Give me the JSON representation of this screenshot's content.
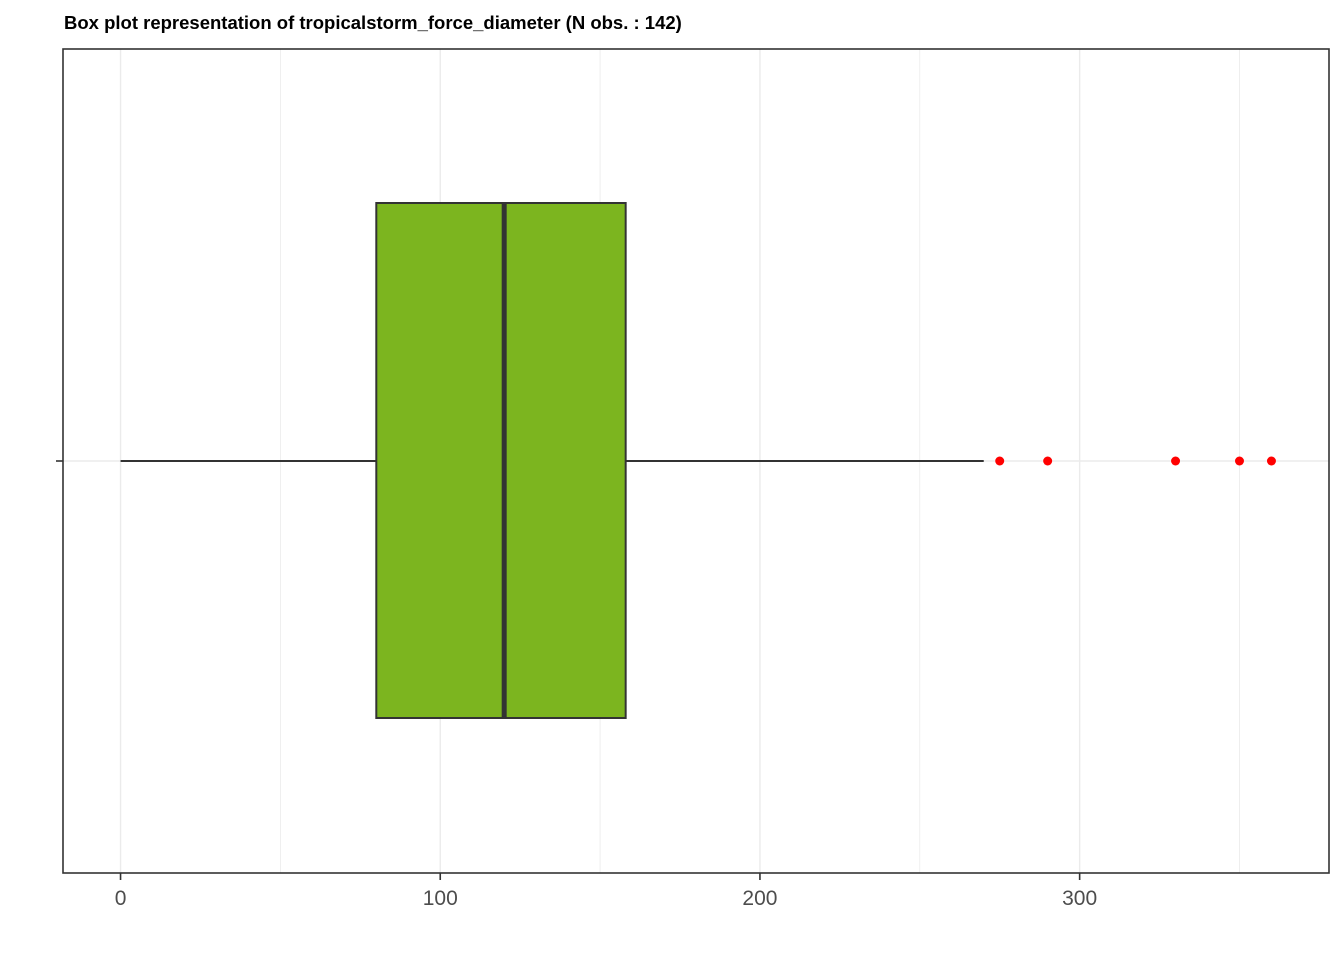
{
  "chart_data": {
    "type": "boxplot",
    "title": "Box plot representation of tropicalstorm_force_diameter (N obs. : 142)",
    "orientation": "horizontal",
    "n_obs": 142,
    "box": {
      "whisker_low": 0,
      "q1": 80,
      "median": 120,
      "q3": 158,
      "whisker_high": 270
    },
    "outliers": [
      275,
      290,
      330,
      350,
      360
    ],
    "xlim": [
      -18,
      378
    ],
    "x_ticks": [
      0,
      100,
      200,
      300
    ],
    "x_tick_labels": [
      "0",
      "100",
      "200",
      "300"
    ],
    "x_minor_ticks": [
      50,
      150,
      250,
      350
    ],
    "grid": true,
    "xlabel": "",
    "ylabel": "",
    "colors": {
      "box_fill": "#7cb51f",
      "box_stroke": "#333333",
      "outlier": "#ff0000",
      "grid": "#ebebeb",
      "panel_border": "#333333"
    }
  }
}
